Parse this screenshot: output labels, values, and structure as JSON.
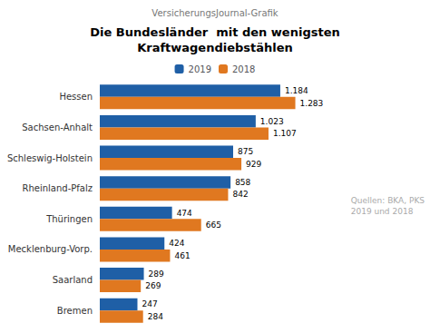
{
  "chart_data": {
    "type": "bar",
    "orientation": "horizontal",
    "subtitle": "VersicherungsJournal-Grafik",
    "title": "Die Bundesländer  mit den wenigsten\nKraftwagendiebstählen",
    "categories": [
      "Hessen",
      "Sachsen-Anhalt",
      "Schleswig-Holstein",
      "Rheinland-Pfalz",
      "Thüringen",
      "Mecklenburg-Vorp.",
      "Saarland",
      "Bremen"
    ],
    "series": [
      {
        "name": "2019",
        "color": "#1F5FA6",
        "values": [
          1184,
          1023,
          875,
          858,
          474,
          424,
          289,
          247
        ],
        "value_labels": [
          "1.184",
          "1.023",
          "875",
          "858",
          "474",
          "424",
          "289",
          "247"
        ]
      },
      {
        "name": "2018",
        "color": "#E07820",
        "values": [
          1283,
          1107,
          929,
          842,
          665,
          461,
          269,
          284
        ],
        "value_labels": [
          "1.283",
          "1.107",
          "929",
          "842",
          "665",
          "461",
          "269",
          "284"
        ]
      }
    ],
    "xlim": [
      0,
      1500
    ],
    "data_labels": true,
    "tick_labels": "y",
    "grid": false,
    "legend": "top",
    "annotations": [
      "Quellen: BKA, PKS\n2019 und 2018"
    ]
  }
}
